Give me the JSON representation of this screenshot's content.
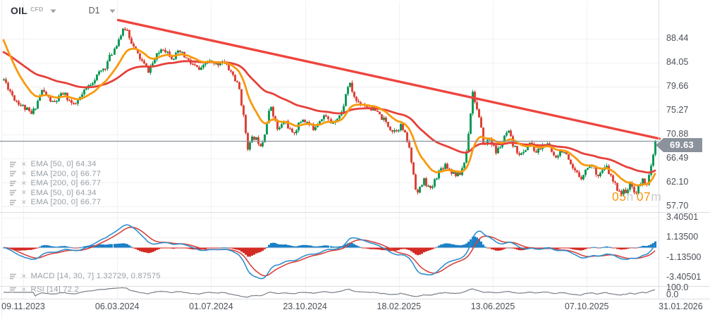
{
  "header": {
    "symbol": "OIL",
    "instrument_type": "CFD",
    "timeframe": "D1"
  },
  "indicators": {
    "ema_labels": [
      "EMA [50, 0] 64.34",
      "EMA [200, 0] 66.77",
      "EMA [200, 0] 66.77",
      "EMA [50, 0] 64.34",
      "EMA [200, 0] 66.77"
    ],
    "macd_label": "MACD [14, 30, 7] 1.32729, 0.87575",
    "rsi_label": "RSI [14] 72.2"
  },
  "countdown": {
    "hours": "05",
    "hours_unit": "h",
    "minutes": "07",
    "minutes_unit": "m"
  },
  "colors": {
    "bull": "#109a58",
    "bear": "#dc4437",
    "ema_fast": "#f89a0d",
    "ema_slow": "#e6403a",
    "trendline": "#ee453e",
    "macd_hist_pos": "#1b80c6",
    "macd_hist_neg": "#d32b24",
    "macd_line": "#2f8fd0",
    "macd_signal": "#d8423c",
    "rsi_line": "#787f86",
    "price_line": "#8b929c",
    "badge_bg": "#8b929c",
    "grid": "#f1f1f4",
    "separator": "#dcdee2",
    "axis_text": "#4a4f57"
  },
  "chart_data": {
    "type": "candlestick",
    "title": "OIL CFD D1 chart with EMA overlays, descending trendline, MACD and RSI panels",
    "symbol": "OIL",
    "instrument_type": "CFD",
    "timeframe": "D1",
    "price_axis": {
      "ticks": [
        "88.44",
        "84.05",
        "79.66",
        "75.27",
        "70.88",
        "66.49",
        "62.10",
        "57.70"
      ],
      "ylim_top_to_bottom": [
        95.45,
        56.85
      ],
      "current_price": 69.63
    },
    "time_axis": {
      "labels": [
        "09.11.2023",
        "06.03.2024",
        "01.07.2024",
        "23.10.2024",
        "18.02.2025",
        "13.06.2025",
        "07.10.2025",
        "31.01.2026"
      ]
    },
    "overlays": [
      {
        "name": "EMA",
        "period": 50,
        "value": 64.34,
        "color_key": "ema_fast"
      },
      {
        "name": "EMA",
        "period": 200,
        "value": 66.77,
        "color_key": "ema_slow"
      },
      {
        "name": "trendline",
        "from": {
          "x_frac": 0.176,
          "price": 91.9
        },
        "to": {
          "x_frac": 1.007,
          "price": 70.1
        }
      }
    ],
    "macd": {
      "params": [
        14,
        30,
        7
      ],
      "values": [
        1.32729,
        0.87575
      ],
      "axis_ticks": [
        "3.40501",
        "1.13500",
        "-1.13500",
        "-3.40501"
      ]
    },
    "rsi": {
      "period": 14,
      "value": 72.2,
      "axis_ticks": [
        "100.0",
        "0.0"
      ]
    },
    "candles": {
      "count": 308,
      "seed": 11,
      "noise": 0.55,
      "wick": 0.45,
      "price_path_waypoints_frac_price": [
        [
          0,
          81
        ],
        [
          0.016,
          77.5
        ],
        [
          0.043,
          74.5
        ],
        [
          0.059,
          79
        ],
        [
          0.076,
          76.5
        ],
        [
          0.092,
          78.5
        ],
        [
          0.108,
          76
        ],
        [
          0.135,
          80.5
        ],
        [
          0.157,
          83.5
        ],
        [
          0.178,
          89
        ],
        [
          0.187,
          90.6
        ],
        [
          0.2,
          86.5
        ],
        [
          0.221,
          82.5
        ],
        [
          0.243,
          87
        ],
        [
          0.259,
          85
        ],
        [
          0.27,
          86
        ],
        [
          0.286,
          84
        ],
        [
          0.302,
          82.5
        ],
        [
          0.313,
          84.5
        ],
        [
          0.324,
          83.5
        ],
        [
          0.335,
          84.5
        ],
        [
          0.351,
          82
        ],
        [
          0.362,
          79
        ],
        [
          0.375,
          68.3
        ],
        [
          0.383,
          70.5
        ],
        [
          0.396,
          69
        ],
        [
          0.41,
          76.3
        ],
        [
          0.421,
          71.5
        ],
        [
          0.432,
          73.5
        ],
        [
          0.443,
          70.8
        ],
        [
          0.459,
          73.8
        ],
        [
          0.475,
          72
        ],
        [
          0.491,
          74.5
        ],
        [
          0.502,
          73
        ],
        [
          0.518,
          74.8
        ],
        [
          0.529,
          80.5
        ],
        [
          0.54,
          77
        ],
        [
          0.551,
          76.5
        ],
        [
          0.567,
          75.5
        ],
        [
          0.583,
          73.5
        ],
        [
          0.597,
          71.5
        ],
        [
          0.61,
          72.5
        ],
        [
          0.621,
          69
        ],
        [
          0.634,
          59.8
        ],
        [
          0.645,
          62.5
        ],
        [
          0.655,
          60.5
        ],
        [
          0.666,
          63.8
        ],
        [
          0.677,
          65.5
        ],
        [
          0.688,
          64
        ],
        [
          0.699,
          63.2
        ],
        [
          0.709,
          66.5
        ],
        [
          0.72,
          78.8
        ],
        [
          0.729,
          74
        ],
        [
          0.738,
          68.5
        ],
        [
          0.745,
          70.5
        ],
        [
          0.756,
          67.5
        ],
        [
          0.767,
          69.8
        ],
        [
          0.774,
          71.5
        ],
        [
          0.783,
          68.5
        ],
        [
          0.796,
          67
        ],
        [
          0.807,
          69.5
        ],
        [
          0.817,
          67.5
        ],
        [
          0.831,
          69.3
        ],
        [
          0.845,
          66.8
        ],
        [
          0.858,
          68.2
        ],
        [
          0.871,
          64.5
        ],
        [
          0.885,
          63
        ],
        [
          0.9,
          65.5
        ],
        [
          0.912,
          63.5
        ],
        [
          0.925,
          64.8
        ],
        [
          0.936,
          61.8
        ],
        [
          0.949,
          60
        ],
        [
          0.962,
          61.5
        ],
        [
          0.971,
          60.2
        ],
        [
          0.979,
          62.5
        ],
        [
          0.988,
          62
        ],
        [
          0.995,
          65.5
        ],
        [
          1,
          69.63
        ]
      ]
    }
  }
}
